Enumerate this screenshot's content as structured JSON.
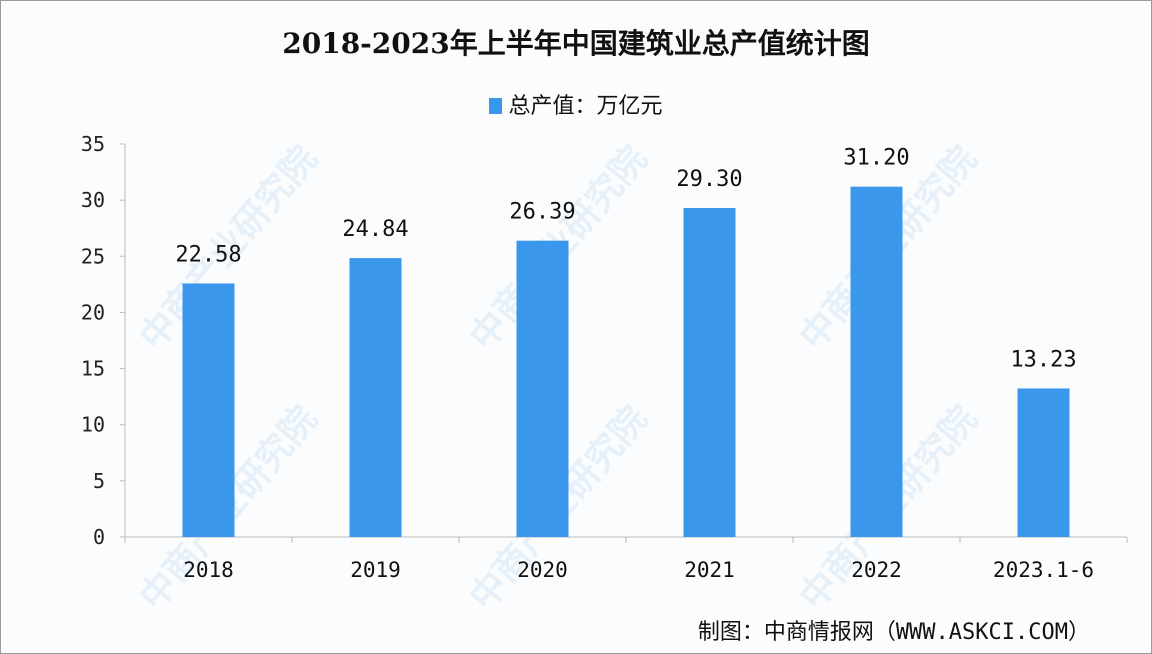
{
  "watermark": "中商产业研究院",
  "source": "制图：中商情报网（WWW.ASKCI.COM）",
  "colors": {
    "bar": "#3a97ec"
  },
  "chart_data": {
    "type": "bar",
    "title": "2018-2023年上半年中国建筑业总产值统计图",
    "legend_label": "总产值：万亿元",
    "legend_position": "top",
    "categories": [
      "2018",
      "2019",
      "2020",
      "2021",
      "2022",
      "2023.1-6"
    ],
    "values": [
      22.58,
      24.84,
      26.39,
      29.3,
      31.2,
      13.23
    ],
    "data_labels": [
      "22.58",
      "24.84",
      "26.39",
      "29.30",
      "31.20",
      "13.23"
    ],
    "ylim": [
      0,
      35
    ],
    "yticks": [
      "0",
      "5",
      "10",
      "15",
      "20",
      "25",
      "30",
      "35"
    ],
    "grid": false
  }
}
